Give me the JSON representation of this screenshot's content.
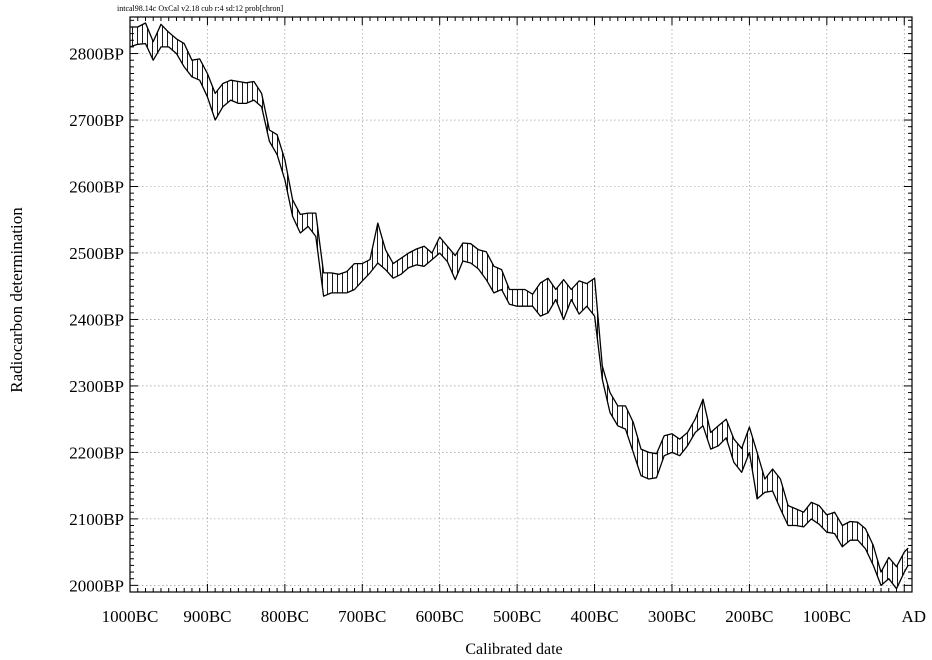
{
  "header": "intcal98.14c OxCal v2.18 cub r:4 sd:12 prob[chron]",
  "chart_data": {
    "type": "area",
    "xlabel": "Calibrated date",
    "ylabel": "Radiocarbon determination",
    "x_ticks": [
      {
        "value": -1000,
        "label": "1000BC"
      },
      {
        "value": -900,
        "label": "900BC"
      },
      {
        "value": -800,
        "label": "800BC"
      },
      {
        "value": -700,
        "label": "700BC"
      },
      {
        "value": -600,
        "label": "600BC"
      },
      {
        "value": -500,
        "label": "500BC"
      },
      {
        "value": -400,
        "label": "400BC"
      },
      {
        "value": -300,
        "label": "300BC"
      },
      {
        "value": -200,
        "label": "200BC"
      },
      {
        "value": -100,
        "label": "100BC"
      },
      {
        "value": 0,
        "label": "AD"
      }
    ],
    "y_ticks": [
      {
        "value": 2000,
        "label": "2000BP"
      },
      {
        "value": 2100,
        "label": "2100BP"
      },
      {
        "value": 2200,
        "label": "2200BP"
      },
      {
        "value": 2300,
        "label": "2300BP"
      },
      {
        "value": 2400,
        "label": "2400BP"
      },
      {
        "value": 2500,
        "label": "2500BP"
      },
      {
        "value": 2600,
        "label": "2600BP"
      },
      {
        "value": 2700,
        "label": "2700BP"
      },
      {
        "value": 2800,
        "label": "2800BP"
      }
    ],
    "xlim": [
      -1000,
      10
    ],
    "ylim": [
      1990,
      2855
    ],
    "grid": true,
    "series": [
      {
        "x": [
          -1000,
          -990,
          -980,
          -970,
          -960,
          -950,
          -940,
          -930,
          -920,
          -910,
          -900,
          -890,
          -880,
          -870,
          -860,
          -850,
          -840,
          -830,
          -820,
          -810,
          -800,
          -790,
          -780,
          -770,
          -760,
          -750,
          -740,
          -730,
          -720,
          -710,
          -700,
          -690,
          -680,
          -670,
          -660,
          -650,
          -640,
          -630,
          -620,
          -610,
          -600,
          -590,
          -580,
          -570,
          -560,
          -550,
          -540,
          -530,
          -520,
          -510,
          -500,
          -490,
          -480,
          -470,
          -460,
          -450,
          -440,
          -430,
          -420,
          -410,
          -400,
          -390,
          -380,
          -370,
          -360,
          -350,
          -340,
          -330,
          -320,
          -310,
          -300,
          -290,
          -280,
          -270,
          -260,
          -250,
          -240,
          -230,
          -220,
          -210,
          -200,
          -190,
          -180,
          -170,
          -160,
          -150,
          -140,
          -130,
          -120,
          -110,
          -100,
          -90,
          -80,
          -70,
          -60,
          -50,
          -40,
          -30,
          -20,
          -10,
          0,
          5
        ],
        "upper": [
          2840,
          2840,
          2846,
          2818,
          2844,
          2832,
          2822,
          2815,
          2790,
          2792,
          2770,
          2740,
          2755,
          2760,
          2758,
          2756,
          2758,
          2740,
          2685,
          2678,
          2640,
          2580,
          2558,
          2560,
          2560,
          2470,
          2470,
          2468,
          2472,
          2484,
          2484,
          2490,
          2545,
          2505,
          2484,
          2492,
          2500,
          2506,
          2510,
          2500,
          2524,
          2510,
          2496,
          2515,
          2514,
          2505,
          2502,
          2480,
          2475,
          2445,
          2445,
          2445,
          2438,
          2455,
          2462,
          2445,
          2460,
          2445,
          2458,
          2454,
          2462,
          2330,
          2290,
          2270,
          2270,
          2245,
          2205,
          2200,
          2198,
          2225,
          2228,
          2220,
          2230,
          2250,
          2280,
          2230,
          2240,
          2250,
          2220,
          2206,
          2238,
          2200,
          2160,
          2175,
          2160,
          2120,
          2115,
          2110,
          2125,
          2120,
          2106,
          2110,
          2090,
          2096,
          2095,
          2085,
          2060,
          2020,
          2042,
          2028,
          2050,
          2056
        ],
        "lower": [
          2810,
          2814,
          2815,
          2790,
          2810,
          2810,
          2800,
          2780,
          2765,
          2760,
          2735,
          2700,
          2720,
          2730,
          2725,
          2725,
          2730,
          2720,
          2668,
          2648,
          2610,
          2555,
          2530,
          2540,
          2525,
          2435,
          2440,
          2440,
          2440,
          2445,
          2458,
          2470,
          2485,
          2475,
          2462,
          2468,
          2478,
          2482,
          2480,
          2490,
          2500,
          2487,
          2460,
          2488,
          2485,
          2476,
          2460,
          2440,
          2445,
          2423,
          2420,
          2420,
          2420,
          2405,
          2410,
          2430,
          2400,
          2430,
          2408,
          2420,
          2405,
          2310,
          2260,
          2240,
          2235,
          2200,
          2165,
          2160,
          2162,
          2195,
          2200,
          2195,
          2210,
          2230,
          2240,
          2205,
          2210,
          2222,
          2185,
          2170,
          2200,
          2130,
          2140,
          2142,
          2115,
          2090,
          2090,
          2088,
          2100,
          2092,
          2080,
          2078,
          2058,
          2068,
          2068,
          2055,
          2030,
          2000,
          2010,
          1995,
          2020,
          2030
        ]
      }
    ]
  }
}
